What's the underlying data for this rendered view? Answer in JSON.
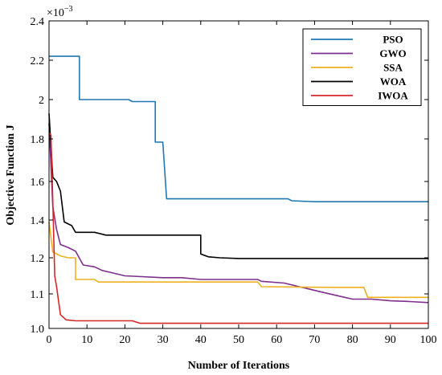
{
  "chart_data": {
    "type": "line",
    "title": "",
    "xlabel": "Number of Iterations",
    "ylabel": "Objective Function J",
    "y_multiplier_label": "×10",
    "y_multiplier_exponent": "−3",
    "xlim": [
      0,
      100
    ],
    "ylim": [
      1.0,
      2.4
    ],
    "x_ticks": [
      "0",
      "10",
      "20",
      "30",
      "40",
      "50",
      "60",
      "70",
      "80",
      "90",
      "100"
    ],
    "y_ticks": [
      "1.0",
      "1.1",
      "1.2",
      "1.4",
      "1.6",
      "1.8",
      "2",
      "2.2",
      "2.4"
    ],
    "y_tick_values": [
      1.0,
      1.1,
      1.2,
      1.4,
      1.6,
      1.8,
      2.0,
      2.2,
      2.4
    ],
    "grid": false,
    "legend_position": "top-right",
    "series": [
      {
        "name": "PSO",
        "color": "#1f77b4",
        "points": [
          [
            0,
            2.22
          ],
          [
            8,
            2.22
          ],
          [
            8,
            2.0
          ],
          [
            21,
            2.0
          ],
          [
            22,
            1.99
          ],
          [
            28,
            1.99
          ],
          [
            28,
            1.785
          ],
          [
            30,
            1.785
          ],
          [
            31,
            1.51
          ],
          [
            63,
            1.51
          ],
          [
            64,
            1.5
          ],
          [
            70,
            1.495
          ],
          [
            100,
            1.495
          ]
        ]
      },
      {
        "name": "GWO",
        "color": "#7e2f8e",
        "points": [
          [
            0,
            1.88
          ],
          [
            1,
            1.47
          ],
          [
            2,
            1.35
          ],
          [
            3,
            1.27
          ],
          [
            5,
            1.255
          ],
          [
            7,
            1.235
          ],
          [
            9,
            1.18
          ],
          [
            12,
            1.175
          ],
          [
            14,
            1.165
          ],
          [
            16,
            1.16
          ],
          [
            20,
            1.15
          ],
          [
            30,
            1.145
          ],
          [
            35,
            1.145
          ],
          [
            40,
            1.14
          ],
          [
            55,
            1.14
          ],
          [
            56,
            1.135
          ],
          [
            62,
            1.13
          ],
          [
            68,
            1.115
          ],
          [
            72,
            1.105
          ],
          [
            76,
            1.095
          ],
          [
            80,
            1.085
          ],
          [
            85,
            1.085
          ],
          [
            90,
            1.08
          ],
          [
            95,
            1.078
          ],
          [
            100,
            1.075
          ]
        ]
      },
      {
        "name": "SSA",
        "color": "#edb120",
        "points": [
          [
            0,
            1.39
          ],
          [
            1,
            1.23
          ],
          [
            3,
            1.21
          ],
          [
            5,
            1.2
          ],
          [
            7,
            1.2
          ],
          [
            7,
            1.14
          ],
          [
            12,
            1.14
          ],
          [
            13,
            1.133
          ],
          [
            40,
            1.133
          ],
          [
            41,
            1.133
          ],
          [
            55,
            1.133
          ],
          [
            56,
            1.12
          ],
          [
            75,
            1.118
          ],
          [
            83,
            1.118
          ],
          [
            84,
            1.09
          ],
          [
            100,
            1.09
          ]
        ]
      },
      {
        "name": "WOA",
        "color": "#000000",
        "points": [
          [
            0,
            1.93
          ],
          [
            1,
            1.62
          ],
          [
            2,
            1.6
          ],
          [
            3,
            1.55
          ],
          [
            4,
            1.39
          ],
          [
            6,
            1.37
          ],
          [
            7,
            1.335
          ],
          [
            12,
            1.335
          ],
          [
            15,
            1.32
          ],
          [
            38,
            1.32
          ],
          [
            40,
            1.32
          ],
          [
            40,
            1.22
          ],
          [
            42,
            1.205
          ],
          [
            45,
            1.2
          ],
          [
            50,
            1.198
          ],
          [
            100,
            1.198
          ]
        ]
      },
      {
        "name": "IWOA",
        "color": "#d62728",
        "points": [
          [
            0,
            1.83
          ],
          [
            0.5,
            1.82
          ],
          [
            1,
            1.5
          ],
          [
            1.5,
            1.15
          ],
          [
            2,
            1.12
          ],
          [
            3,
            1.04
          ],
          [
            4.5,
            1.025
          ],
          [
            7,
            1.022
          ],
          [
            22,
            1.022
          ],
          [
            24,
            1.015
          ],
          [
            100,
            1.015
          ]
        ]
      }
    ]
  }
}
